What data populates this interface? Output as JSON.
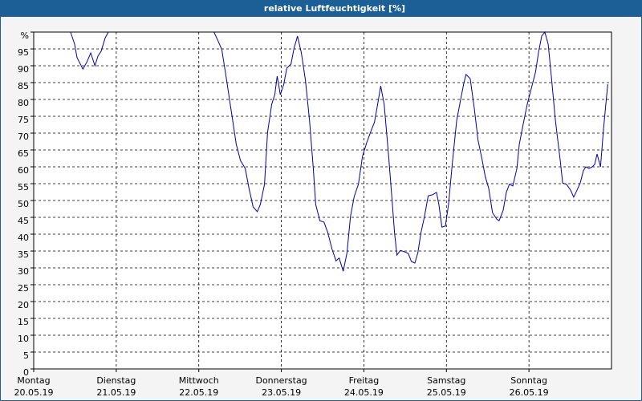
{
  "chart_data": {
    "type": "line",
    "title": "relative Luftfeuchtigkeit [%]",
    "color": "#0000aa",
    "grid": true,
    "xlim": [
      0,
      168
    ],
    "xticks": [
      {
        "value": 0,
        "label": "Montag",
        "date": "20.05.19"
      },
      {
        "value": 24,
        "label": "Dienstag",
        "date": "21.05.19"
      },
      {
        "value": 48,
        "label": "Mittwoch",
        "date": "22.05.19"
      },
      {
        "value": 72,
        "label": "Donnerstag",
        "date": "23.05.19"
      },
      {
        "value": 96,
        "label": "Freitag",
        "date": "24.05.19"
      },
      {
        "value": 120,
        "label": "Samstag",
        "date": "25.05.19"
      },
      {
        "value": 144,
        "label": "Sonntag",
        "date": "26.05.19"
      }
    ],
    "ylim": [
      0,
      100
    ],
    "yticks": [
      0,
      5,
      10,
      15,
      20,
      25,
      30,
      35,
      40,
      45,
      50,
      55,
      60,
      65,
      70,
      75,
      80,
      85,
      90,
      95,
      {
        "value": 100,
        "label": "%"
      }
    ],
    "x": [
      10.7,
      11.9,
      12.6,
      14.3,
      15.4,
      16.6,
      17.8,
      18.7,
      19.6,
      20.8,
      21.7,
      null,
      52.4,
      53.5,
      54.7,
      56.1,
      57.5,
      58.9,
      60.1,
      61.5,
      62.6,
      63.8,
      65.0,
      65.9,
      67.1,
      68.0,
      69.2,
      70.1,
      70.8,
      71.7,
      72.7,
      73.6,
      74.8,
      75.7,
      76.7,
      77.8,
      79.0,
      80.2,
      81.3,
      82.0,
      83.2,
      84.4,
      85.5,
      86.7,
      87.9,
      88.8,
      90.0,
      91.1,
      92.1,
      93.2,
      94.4,
      95.6,
      96.8,
      97.9,
      99.1,
      100.0,
      100.9,
      101.9,
      103.1,
      104.2,
      104.9,
      105.6,
      106.6,
      107.7,
      108.9,
      109.8,
      110.8,
      111.7,
      112.6,
      113.6,
      114.7,
      115.9,
      117.1,
      117.8,
      118.7,
      119.7,
      120.6,
      121.8,
      123.0,
      124.1,
      125.0,
      125.7,
      126.9,
      128.1,
      129.2,
      130.4,
      131.3,
      132.3,
      133.4,
      134.6,
      135.3,
      136.5,
      137.4,
      138.3,
      139.3,
      140.5,
      141.2,
      142.3,
      143.5,
      144.7,
      145.9,
      146.8,
      147.7,
      148.6,
      149.6,
      150.5,
      151.7,
      153.1,
      153.8,
      154.9,
      156.1,
      157.0,
      157.9,
      158.9,
      159.8,
      160.5,
      161.5,
      162.4,
      163.1,
      163.8,
      164.8,
      165.7,
      166.9
    ],
    "values": [
      100,
      96.4,
      92.4,
      89,
      91,
      93.8,
      90,
      92.9,
      94.3,
      98.3,
      100,
      null,
      100,
      97.6,
      94.8,
      85.7,
      76.2,
      66.7,
      61.9,
      59.5,
      53.6,
      48.1,
      46.7,
      48.8,
      54.8,
      70.2,
      78.6,
      81.4,
      86.9,
      81.4,
      84.5,
      89.3,
      90.5,
      95.2,
      98.8,
      94,
      85.7,
      73.8,
      59.5,
      48.8,
      44,
      43.6,
      40.5,
      35.7,
      32.1,
      32.9,
      29,
      34.5,
      45.2,
      51.2,
      54.8,
      63.1,
      67.1,
      70.2,
      73.3,
      78.6,
      84,
      78.6,
      64.3,
      50,
      40.5,
      33.8,
      35.2,
      34.8,
      34.3,
      31.9,
      31.4,
      34.5,
      40.5,
      45.2,
      51.4,
      51.7,
      52.4,
      48.8,
      42.1,
      42.4,
      48.8,
      61.9,
      73.8,
      79.8,
      84.5,
      87.4,
      86.2,
      77.4,
      67.9,
      61.9,
      57.1,
      53.6,
      46.4,
      44.5,
      44,
      47.1,
      52.4,
      54.8,
      54.3,
      59.5,
      66.7,
      72.6,
      78.6,
      83.3,
      88.1,
      94,
      98.8,
      100,
      96.4,
      86.9,
      73.8,
      61.9,
      55.2,
      54.8,
      53.1,
      51,
      52.9,
      55.2,
      58.8,
      60,
      59.5,
      60,
      60.7,
      63.8,
      60,
      71.4,
      84.5
    ]
  }
}
